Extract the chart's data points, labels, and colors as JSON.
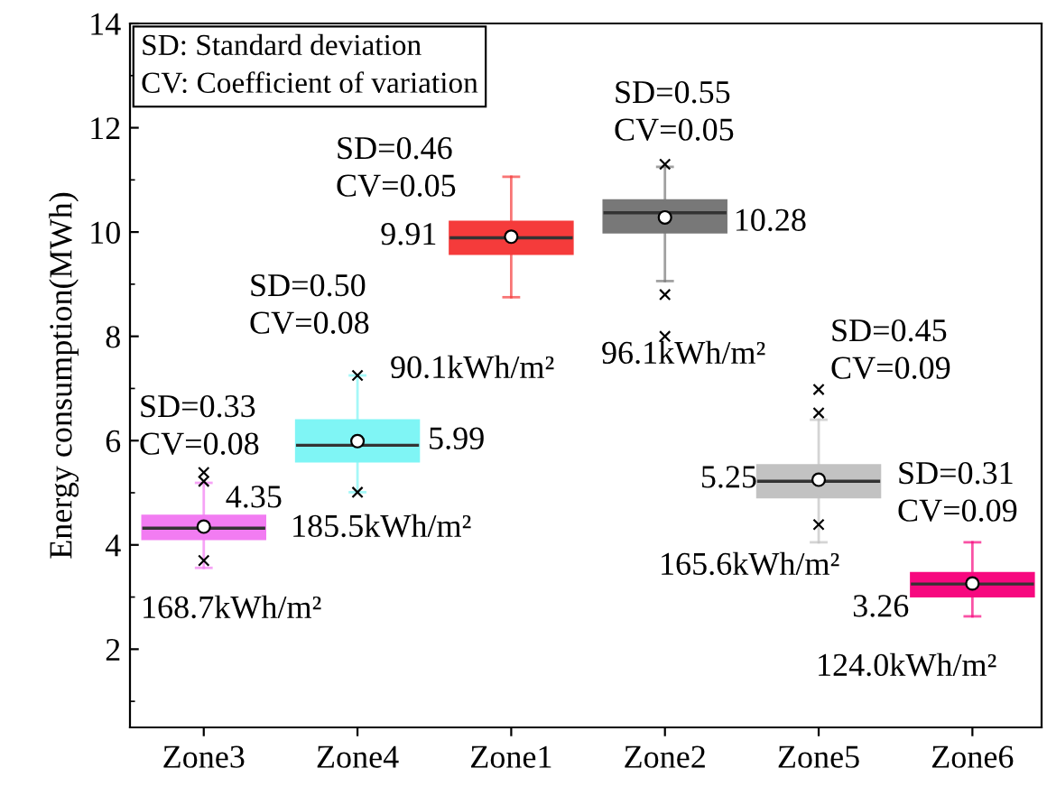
{
  "chart_data": {
    "type": "box",
    "ylabel": "Energy consumption(MWh)",
    "categories": [
      "Zone3",
      "Zone4",
      "Zone1",
      "Zone2",
      "Zone5",
      "Zone6"
    ],
    "colors": [
      "#f27cf2",
      "#7ff5f5",
      "#f53b3b",
      "#787878",
      "#c2c2c2",
      "#f7087f"
    ],
    "boxes": [
      {
        "low": 3.56,
        "q1": 4.11,
        "median": 4.32,
        "q3": 4.56,
        "high": 5.19,
        "mean": 4.35,
        "outliers": [
          5.39,
          5.22,
          3.7
        ]
      },
      {
        "low": 5.01,
        "q1": 5.6,
        "median": 5.91,
        "q3": 6.39,
        "high": 7.25,
        "mean": 5.99,
        "outliers": [
          7.25,
          5.01
        ]
      },
      {
        "low": 8.75,
        "q1": 9.58,
        "median": 9.89,
        "q3": 10.2,
        "high": 11.06,
        "mean": 9.91
      },
      {
        "low": 9.06,
        "q1": 9.99,
        "median": 10.37,
        "q3": 10.61,
        "high": 11.25,
        "mean": 10.28,
        "outliers": [
          11.3,
          8.8,
          8.0
        ]
      },
      {
        "low": 4.05,
        "q1": 4.91,
        "median": 5.22,
        "q3": 5.53,
        "high": 6.4,
        "mean": 5.25,
        "outliers": [
          6.98,
          6.53,
          4.39
        ]
      },
      {
        "low": 2.63,
        "q1": 3.01,
        "median": 3.25,
        "q3": 3.46,
        "high": 4.05,
        "mean": 3.26
      }
    ],
    "ylim": [
      0.5,
      14
    ],
    "yticks": [
      2,
      4,
      6,
      8,
      10,
      12,
      14
    ],
    "grid": false,
    "legend": false,
    "annotations": [
      "SD: Standard deviation\nCV: Coefficient of variation",
      "SD=0.33\nCV=0.08",
      {
        "text": "4.35",
        "x": "Zone3",
        "y": 4.35
      },
      "168.7kWh/m²",
      "SD=0.50\nCV=0.08",
      {
        "text": "5.99",
        "x": "Zone4",
        "y": 5.99
      },
      "185.5kWh/m²",
      "SD=0.46\nCV=0.05",
      {
        "text": "9.91",
        "x": "Zone1",
        "y": 9.91
      },
      "90.1kWh/m²",
      "SD=0.55\nCV=0.05",
      {
        "text": "10.28",
        "x": "Zone2",
        "y": 10.28
      },
      "96.1kWh/m²",
      "SD=0.45\nCV=0.09",
      {
        "text": "5.25",
        "x": "Zone5",
        "y": 5.25
      },
      "165.6kWh/m²",
      "SD=0.31\nCV=0.09",
      {
        "text": "3.26",
        "x": "Zone6",
        "y": 3.26
      },
      "124.0kWh/m²"
    ]
  }
}
